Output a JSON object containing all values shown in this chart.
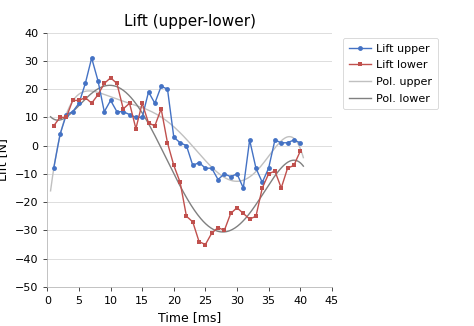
{
  "title": "Lift (upper-lower)",
  "xlabel": "Time [ms]",
  "ylabel": "Lift [N]",
  "xlim": [
    0,
    45
  ],
  "ylim": [
    -50,
    40
  ],
  "xticks": [
    0,
    5,
    10,
    15,
    20,
    25,
    30,
    35,
    40,
    45
  ],
  "yticks": [
    -50,
    -40,
    -30,
    -20,
    -10,
    0,
    10,
    20,
    30,
    40
  ],
  "upper_x": [
    1,
    2,
    3,
    4,
    5,
    6,
    7,
    8,
    9,
    10,
    11,
    12,
    13,
    14,
    15,
    16,
    17,
    18,
    19,
    20,
    21,
    22,
    23,
    24,
    25,
    26,
    27,
    28,
    29,
    30,
    31,
    32,
    33,
    34,
    35,
    36,
    37,
    38,
    39,
    40
  ],
  "upper_y": [
    -8,
    4,
    11,
    12,
    15,
    22,
    31,
    23,
    12,
    16,
    12,
    12,
    11,
    10,
    10,
    19,
    15,
    21,
    20,
    3,
    1,
    0,
    -7,
    -6,
    -8,
    -8,
    -12,
    -10,
    -11,
    -10,
    -15,
    2,
    -8,
    -13,
    -8,
    2,
    1,
    1,
    2,
    1
  ],
  "lower_x": [
    1,
    2,
    3,
    4,
    5,
    6,
    7,
    8,
    9,
    10,
    11,
    12,
    13,
    14,
    15,
    16,
    17,
    18,
    19,
    20,
    21,
    22,
    23,
    24,
    25,
    26,
    27,
    28,
    29,
    30,
    31,
    32,
    33,
    34,
    35,
    36,
    37,
    38,
    39,
    40
  ],
  "lower_y": [
    7,
    10,
    10,
    16,
    16,
    17,
    15,
    18,
    22,
    24,
    22,
    13,
    15,
    6,
    15,
    8,
    7,
    13,
    1,
    -7,
    -13,
    -25,
    -27,
    -34,
    -35,
    -31,
    -29,
    -30,
    -24,
    -22,
    -24,
    -26,
    -25,
    -15,
    -10,
    -9,
    -15,
    -8,
    -7,
    -2
  ],
  "color_upper": "#4472C4",
  "color_lower": "#C0504D",
  "color_pol_upper": "#C0C0C0",
  "color_pol_lower": "#808080",
  "background_color": "#FFFFFF",
  "grid_color": "#D8D8D8",
  "title_fontsize": 11,
  "label_fontsize": 9,
  "tick_fontsize": 8,
  "legend_fontsize": 8,
  "poly_deg": 6
}
